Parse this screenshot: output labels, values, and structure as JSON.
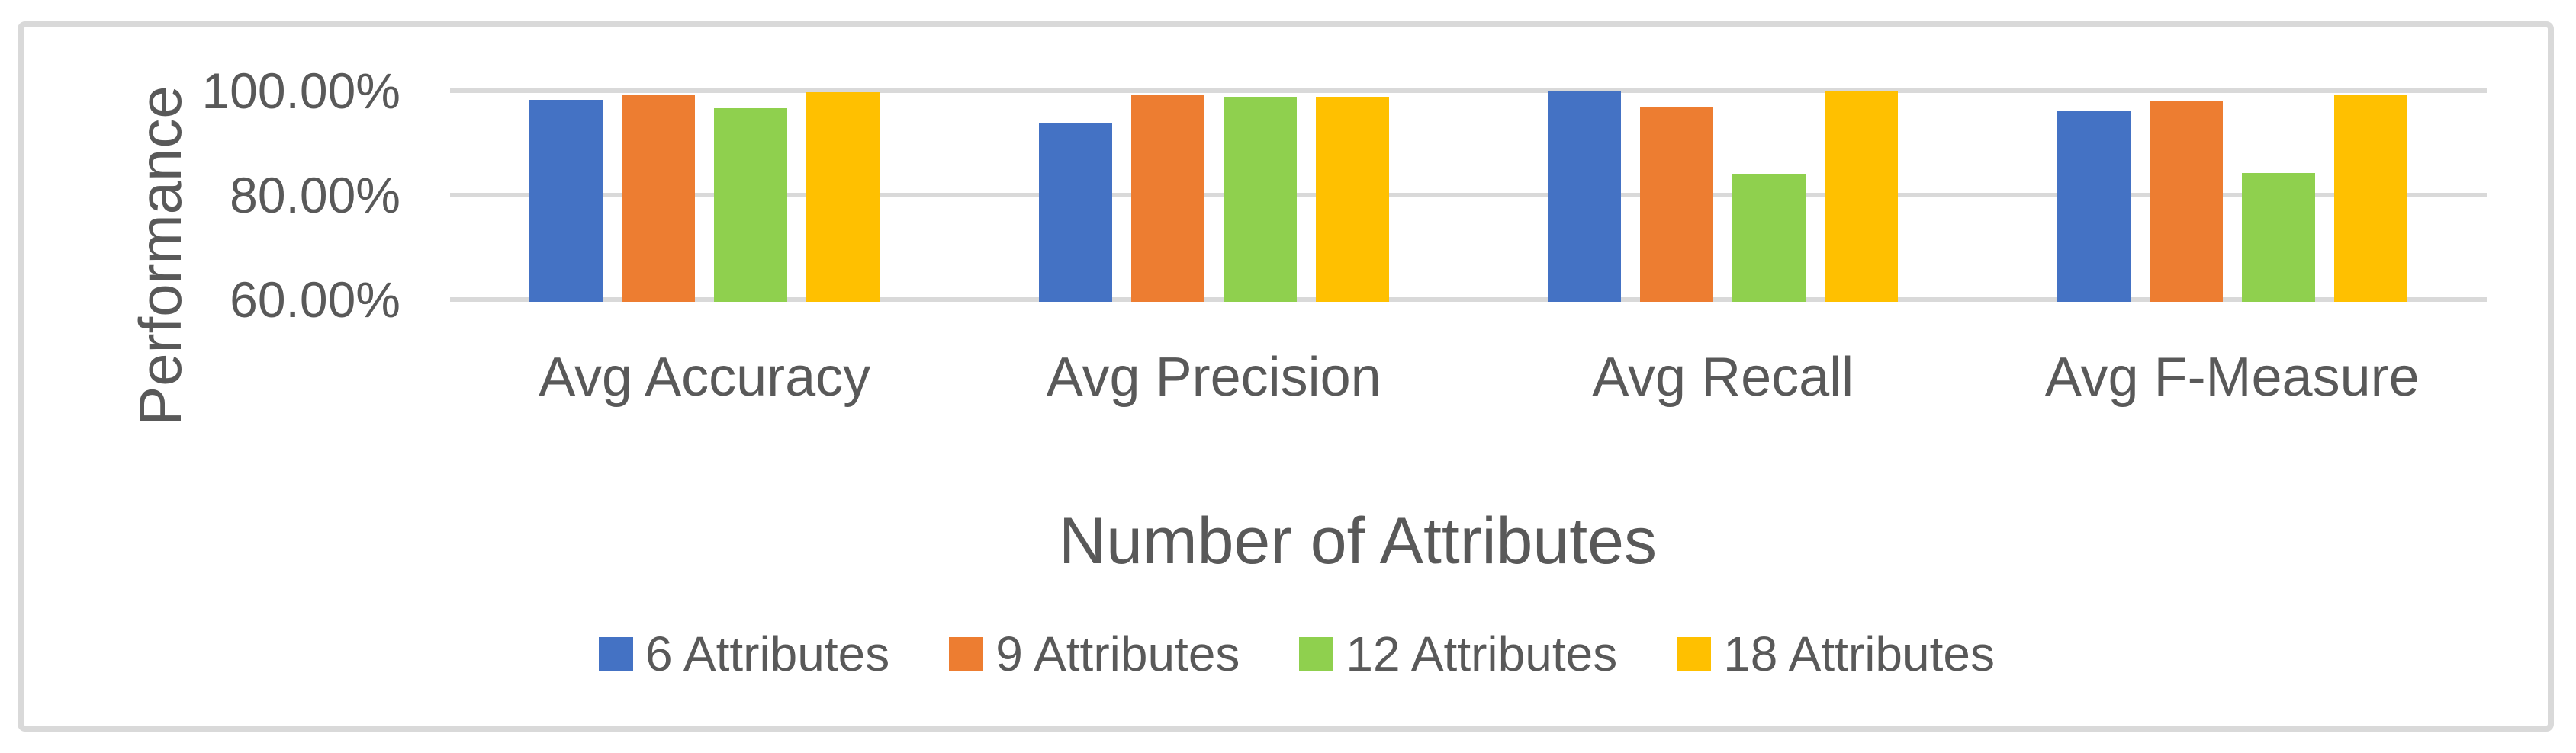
{
  "chart_data": {
    "type": "bar",
    "title": "",
    "xlabel": "Number of Attributes",
    "ylabel": "Performance",
    "categories": [
      "Avg Accuracy",
      "Avg Precision",
      "Avg Recall",
      "Avg F-Measure"
    ],
    "series": [
      {
        "name": "6 Attributes",
        "color": "#4472C4",
        "values": [
          98.2,
          93.9,
          100.0,
          96.1
        ]
      },
      {
        "name": "9 Attributes",
        "color": "#ED7D31",
        "values": [
          99.3,
          99.3,
          96.9,
          97.9
        ]
      },
      {
        "name": "12 Attributes",
        "color": "#8FD04E",
        "values": [
          96.7,
          98.9,
          84.1,
          84.3
        ]
      },
      {
        "name": "18 Attributes",
        "color": "#FFC000",
        "values": [
          99.7,
          98.9,
          100.0,
          99.3
        ]
      }
    ],
    "y_axis": {
      "min": 60,
      "max": 100,
      "unit": "%",
      "ticks": [
        {
          "value": 100,
          "label": "100.00%"
        },
        {
          "value": 80,
          "label": "80.00%"
        },
        {
          "value": 60,
          "label": "60.00%"
        }
      ]
    },
    "grid": true,
    "legend_position": "bottom",
    "colors": {
      "gridline": "#D9D9D9",
      "border": "#D9D9D9",
      "text": "#595959"
    }
  }
}
